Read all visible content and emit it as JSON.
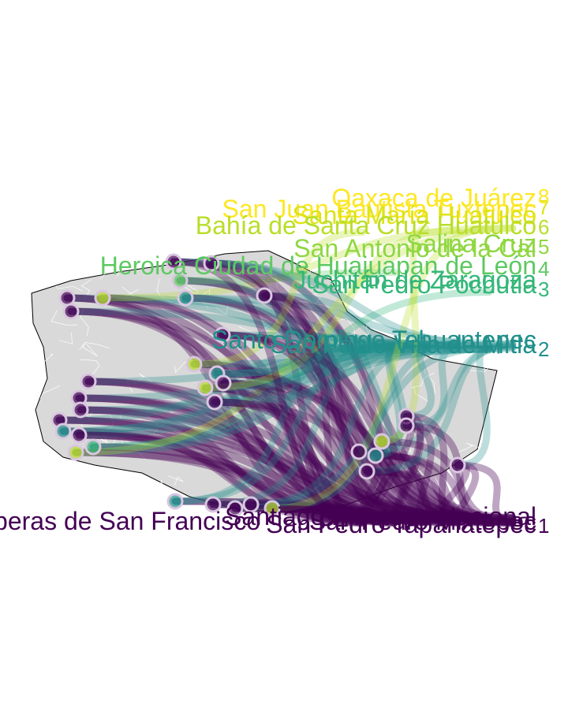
{
  "colors": {
    "background": "#ffffff",
    "land": "#d9d9d9",
    "municipal_border": "#ffffff",
    "state_border": "#000000",
    "rank_1": "#440154",
    "rank_2": "#21908c",
    "rank_3": "#35b779",
    "rank_4": "#5ec962",
    "rank_5": "#90d743",
    "rank_6": "#b8de29",
    "rank_7": "#dde318",
    "rank_8": "#fde725"
  },
  "rank_labels": {
    "r1": "1",
    "r2": "2",
    "r3": "3",
    "r4": "4",
    "r5": "5",
    "r6": "6",
    "r7": "7",
    "r8": "8"
  },
  "place_labels": {
    "heroica_ciudad": "Heroica Ciudad de Huajuapan de León",
    "bahia": "Bahía de Santa Cruz Huatulco",
    "oaxaca": "Oaxaca de Juárez",
    "san_juan": "San Juan Bautista Tuxtepec",
    "santa_maria": "Santa María Huatulco",
    "salina_cruz": "Salina Cruz",
    "sabino": "San Antonio de la Cal",
    "sancturio": "San Pedro Pochutla",
    "juchitan": "Juchitán de Zaragoza",
    "rank2_a": "San Pablo Villa de Mitla",
    "rank2_b": "Santo Domingo Tehuantepec",
    "rank1_left": "Riberas de San Francisco",
    "rank1_a": "San Pedro Mixtepec",
    "rank1_b": "Santiago Pinotepa Nacional",
    "rank1_c": "San Pedro Tapanatepec"
  }
}
